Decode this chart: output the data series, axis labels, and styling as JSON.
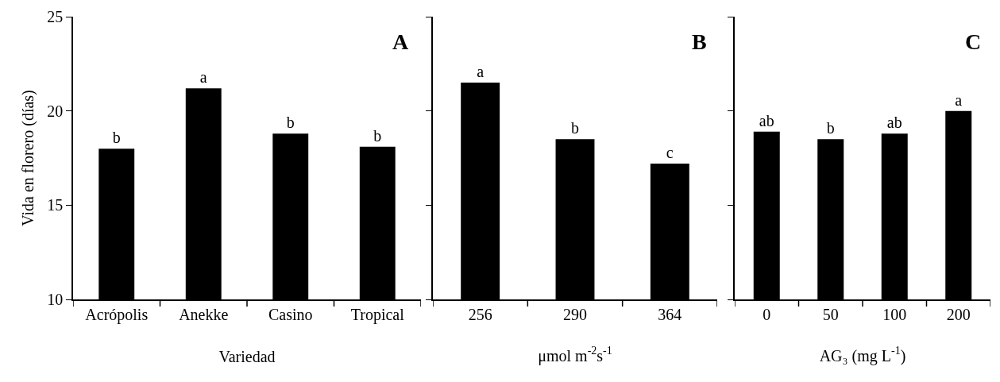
{
  "chart_data": [
    {
      "type": "bar",
      "categories": [
        "Acrópolis",
        "Anekke",
        "Casino",
        "Tropical"
      ],
      "values": [
        18.0,
        21.2,
        18.8,
        18.1
      ],
      "value_labels": [
        "b",
        "a",
        "b",
        "b"
      ],
      "color": "#000000",
      "xlabel": "Variedad",
      "ylabel": "Vida en florero (días)",
      "ylim": [
        10,
        25
      ],
      "yticks": [
        10,
        15,
        20,
        25
      ],
      "grid": false,
      "annotations": [
        "A"
      ]
    },
    {
      "type": "bar",
      "categories": [
        "256",
        "290",
        "364"
      ],
      "values": [
        21.5,
        18.5,
        17.2
      ],
      "value_labels": [
        "a",
        "b",
        "c"
      ],
      "color": "#000000",
      "xlabel": "μmol m$^{-2}$s$^{-1}$",
      "ylim": [
        10,
        25
      ],
      "yticks": [
        10,
        15,
        20,
        25
      ],
      "grid": false,
      "tick_labels": "x",
      "annotations": [
        "B"
      ]
    },
    {
      "type": "bar",
      "categories": [
        "0",
        "50",
        "100",
        "200"
      ],
      "values": [
        18.9,
        18.5,
        18.8,
        20.0
      ],
      "value_labels": [
        "ab",
        "b",
        "ab",
        "a"
      ],
      "color": "#000000",
      "xlabel": "AG₃ (mg L$^{-1}$)",
      "ylim": [
        10,
        25
      ],
      "yticks": [
        10,
        15,
        20,
        25
      ],
      "grid": false,
      "tick_labels": "x",
      "annotations": [
        "C"
      ]
    }
  ]
}
